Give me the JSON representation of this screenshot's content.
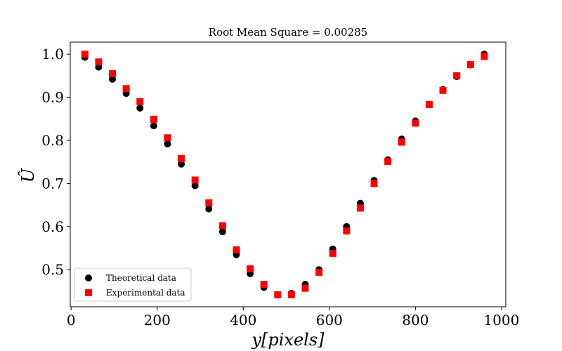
{
  "chart_data": {
    "type": "scatter",
    "title": "Root Mean Square = 0.00285",
    "xlabel": "y[pixels]",
    "ylabel": "Û",
    "xlim": [
      -2,
      1010
    ],
    "ylim": [
      0.414,
      1.028
    ],
    "x_ticks": [
      0,
      200,
      400,
      600,
      800,
      1000
    ],
    "y_ticks": [
      0.5,
      0.6,
      0.7,
      0.8,
      0.9,
      1.0
    ],
    "x_tick_labels": [
      "0",
      "200",
      "400",
      "600",
      "800",
      "1000"
    ],
    "y_tick_labels": [
      "0.5",
      "0.6",
      "0.7",
      "0.8",
      "0.9",
      "1.0"
    ],
    "grid": false,
    "legend_position": "lower-left",
    "series": [
      {
        "name": "Theoretical data",
        "marker": "circle",
        "color": "#000000",
        "x": [
          32,
          64,
          96,
          128,
          160,
          192,
          224,
          256,
          288,
          320,
          352,
          384,
          416,
          448,
          480,
          512,
          544,
          576,
          608,
          640,
          672,
          704,
          736,
          768,
          800,
          832,
          864,
          896,
          928,
          960
        ],
        "y": [
          0.993,
          0.97,
          0.942,
          0.909,
          0.875,
          0.834,
          0.792,
          0.745,
          0.695,
          0.641,
          0.588,
          0.535,
          0.491,
          0.459,
          0.442,
          0.445,
          0.466,
          0.5,
          0.548,
          0.6,
          0.654,
          0.707,
          0.755,
          0.803,
          0.845,
          0.883,
          0.918,
          0.948,
          0.975,
          1.0
        ]
      },
      {
        "name": "Experimental data",
        "marker": "square",
        "color": "#ff0000",
        "x": [
          32,
          64,
          96,
          128,
          160,
          192,
          224,
          256,
          288,
          320,
          352,
          384,
          416,
          448,
          480,
          512,
          544,
          576,
          608,
          640,
          672,
          704,
          736,
          768,
          800,
          832,
          864,
          896,
          928,
          960
        ],
        "y": [
          1.0,
          0.982,
          0.955,
          0.92,
          0.89,
          0.849,
          0.806,
          0.758,
          0.708,
          0.655,
          0.602,
          0.546,
          0.502,
          0.466,
          0.442,
          0.442,
          0.457,
          0.494,
          0.538,
          0.59,
          0.643,
          0.7,
          0.751,
          0.796,
          0.84,
          0.883,
          0.916,
          0.95,
          0.976,
          0.995
        ]
      }
    ]
  }
}
